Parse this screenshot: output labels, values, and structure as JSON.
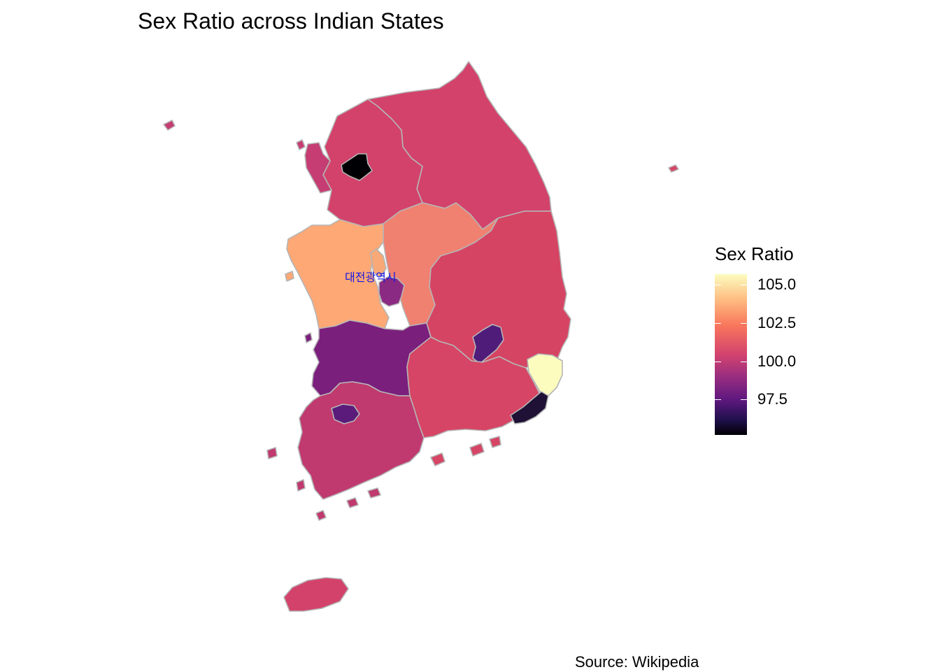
{
  "title": "Sex Ratio across Indian States",
  "caption": "Source: Wikipedia",
  "city_label": "대전광역시",
  "legend": {
    "title": "Sex Ratio",
    "ticks": [
      "105.0",
      "102.5",
      "100.0",
      "97.5"
    ],
    "palette": [
      "#fcfdbf",
      "#febb81",
      "#f8765c",
      "#d3436e",
      "#982d80",
      "#5f187f",
      "#221150",
      "#000004"
    ]
  },
  "colors": {
    "border": "#b5b5b5",
    "gangwon": "#d3426b",
    "gyeonggi": "#d3426b",
    "seoul": "#000004",
    "incheon": "#c53d72",
    "chungnam": "#fea876",
    "chungbuk": "#f08070",
    "sejong": "#f9a877",
    "daejeon": "#8b2a82",
    "jeonbuk": "#7b1f7d",
    "jeonnam": "#c0396f",
    "gwangju": "#5a1b7a",
    "gyeongbuk": "#d64463",
    "daegu": "#4f1c7a",
    "gyeongnam": "#d64565",
    "ulsan": "#fdfcbf",
    "busan": "#1e1135",
    "jeju": "#d3426b"
  }
}
